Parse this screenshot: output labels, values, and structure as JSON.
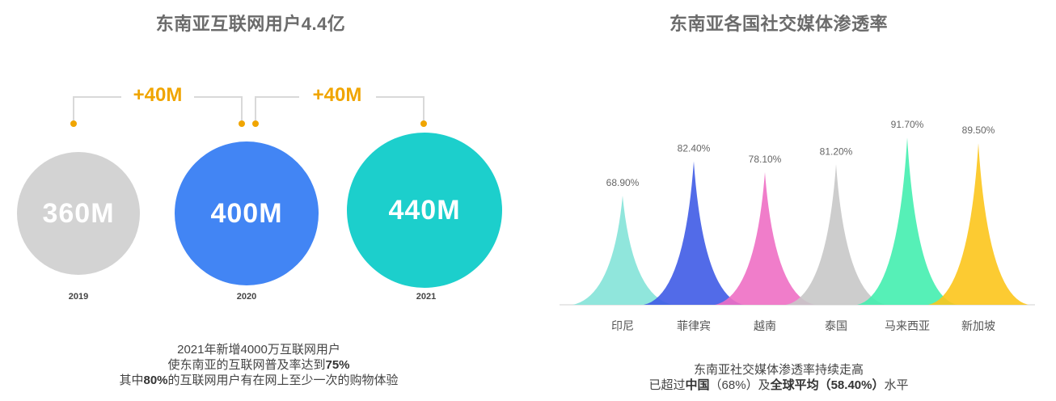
{
  "left": {
    "title": "东南亚互联网用户4.4亿",
    "circles": [
      {
        "label": "360M",
        "year": "2019",
        "color": "#d3d3d3"
      },
      {
        "label": "400M",
        "year": "2020",
        "color": "#4285f4"
      },
      {
        "label": "440M",
        "year": "2021",
        "color": "#1ccfcc"
      }
    ],
    "increments": [
      "+40M",
      "+40M"
    ],
    "connector_color": "#d9d9d9",
    "dot_color": "#f0a500",
    "caption": {
      "line1": "2021年新增4000万互联网用户",
      "line2_pre": "使东南亚的互联网普及率达到",
      "line2_bold": "75%",
      "line3_pre": "其中",
      "line3_bold": "80%",
      "line3_post": "的互联网用户有在网上至少一次的购物体验"
    }
  },
  "right": {
    "title": "东南亚各国社交媒体渗透率",
    "caption": {
      "line1": "东南亚社交媒体渗透率持续走高",
      "line2_pre": "已超过",
      "line2_b1": "中国",
      "line2_m1": "（68%）及",
      "line2_b2": "全球平均",
      "line2_m2": "（58.40%）",
      "line2_post": "水平"
    }
  },
  "chart_data": {
    "type": "area",
    "categories": [
      "印尼",
      "菲律宾",
      "越南",
      "泰国",
      "马来西亚",
      "新加坡"
    ],
    "values": [
      68.9,
      82.4,
      78.1,
      81.2,
      91.7,
      89.5
    ],
    "value_labels": [
      "68.90%",
      "82.40%",
      "78.10%",
      "81.20%",
      "91.70%",
      "89.50%"
    ],
    "colors": [
      "#84e3d8",
      "#3f5be6",
      "#ee6fc4",
      "#c8c8c8",
      "#44eeaf",
      "#fcc51c"
    ],
    "ylim": [
      0,
      100
    ],
    "grid": false,
    "legend": "none"
  }
}
